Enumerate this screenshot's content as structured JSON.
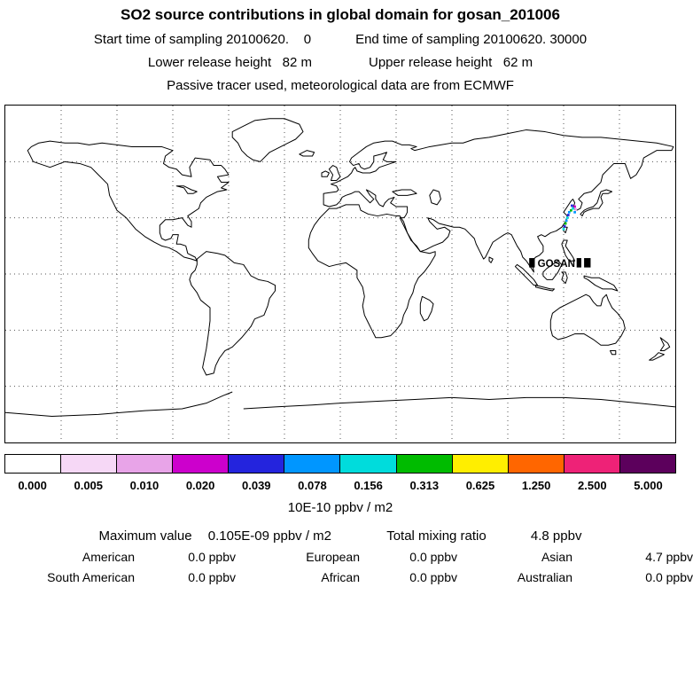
{
  "title": "SO2 source contributions in global domain for gosan_201006",
  "header": {
    "start_time": "Start time of sampling 20100620.    0",
    "end_time": "End time of sampling 20100620. 30000",
    "lower_release": "Lower release height   82 m",
    "upper_release": "Upper release height   62 m",
    "tracer_info": "Passive tracer used, meteorological data are from ECMWF"
  },
  "map": {
    "station_label": "GOSAN",
    "grid_spacing_deg": 30
  },
  "colorbar": {
    "unit_label": "10E-10 ppbv / m2",
    "tick_labels": [
      "0.000",
      "0.005",
      "0.010",
      "0.020",
      "0.039",
      "0.078",
      "0.156",
      "0.313",
      "0.625",
      "1.250",
      "2.500",
      "5.000"
    ],
    "segment_colors": [
      "#ffffff",
      "#f6d8f6",
      "#e8a4e8",
      "#cc00cc",
      "#2424dd",
      "#0096ff",
      "#00dcdc",
      "#00bb00",
      "#ffee00",
      "#ff6600",
      "#ee2277",
      "#5c005c"
    ]
  },
  "stats": {
    "maximum_label": "Maximum value",
    "maximum_value": "0.105E-09 ppbv / m2",
    "total_label": "Total mixing ratio",
    "total_value": "4.8 ppbv",
    "regions": [
      {
        "name": "American",
        "value": "0.0 ppbv"
      },
      {
        "name": "European",
        "value": "0.0 ppbv"
      },
      {
        "name": "Asian",
        "value": "4.7 ppbv"
      },
      {
        "name": "South American",
        "value": "0.0 ppbv"
      },
      {
        "name": "African",
        "value": "0.0 ppbv"
      },
      {
        "name": "Australian",
        "value": "0.0 ppbv"
      }
    ]
  },
  "chart_data": {
    "type": "heatmap",
    "title": "SO2 source contributions in global domain for gosan_201006",
    "projection": "equirectangular world map",
    "lon_range": [
      -180,
      180
    ],
    "lat_range": [
      -90,
      90
    ],
    "grid": "dotted gridlines every 30 degrees",
    "colorbar_levels": [
      0.0,
      0.005,
      0.01,
      0.02,
      0.039,
      0.078,
      0.156,
      0.313,
      0.625,
      1.25,
      2.5,
      5.0
    ],
    "colorbar_unit": "10E-10 ppbv / m2",
    "maximum_value": "0.105E-09 ppbv / m2",
    "total_mixing_ratio_ppbv": 4.8,
    "region_contributions_ppbv": {
      "American": 0.0,
      "European": 0.0,
      "Asian": 4.7,
      "South American": 0.0,
      "African": 0.0,
      "Australian": 0.0
    },
    "hotspot_cells": [
      {
        "lon": 120,
        "lat": 24,
        "color": "#00dcdc"
      },
      {
        "lon": 120.5,
        "lat": 25.5,
        "color": "#2424dd"
      },
      {
        "lon": 121,
        "lat": 27,
        "color": "#00bb00"
      },
      {
        "lon": 121.5,
        "lat": 28.5,
        "color": "#0096ff"
      },
      {
        "lon": 122,
        "lat": 30,
        "color": "#00dcdc"
      },
      {
        "lon": 122.5,
        "lat": 31.5,
        "color": "#2424dd"
      },
      {
        "lon": 123,
        "lat": 33,
        "color": "#0096ff"
      },
      {
        "lon": 124,
        "lat": 34,
        "color": "#00bb00"
      },
      {
        "lon": 125,
        "lat": 35,
        "color": "#00dcdc"
      },
      {
        "lon": 124.5,
        "lat": 36.5,
        "color": "#2424dd"
      },
      {
        "lon": 126,
        "lat": 36,
        "color": "#cc00cc"
      },
      {
        "lon": 126.5,
        "lat": 34.5,
        "color": "#e8a4e8"
      },
      {
        "lon": 126,
        "lat": 33,
        "color": "#0096ff"
      }
    ]
  }
}
